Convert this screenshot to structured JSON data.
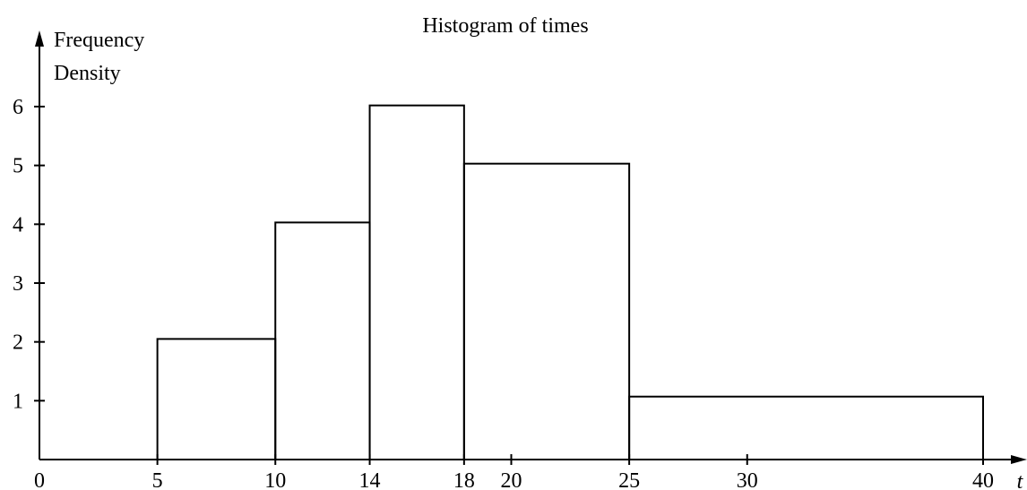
{
  "chart_data": {
    "type": "bar",
    "title": "Histogram of times",
    "ylabel_line1": "Frequency",
    "ylabel_line2": "Density",
    "xlabel": "t",
    "xlim": [
      0,
      40
    ],
    "ylim": [
      0,
      6
    ],
    "bins": [
      {
        "start": 5,
        "end": 10,
        "value": 2.05
      },
      {
        "start": 10,
        "end": 14,
        "value": 4.03
      },
      {
        "start": 14,
        "end": 18,
        "value": 6.02
      },
      {
        "start": 18,
        "end": 25,
        "value": 5.03
      },
      {
        "start": 25,
        "end": 40,
        "value": 1.07
      }
    ],
    "x_ticks": [
      "0",
      "5",
      "10",
      "14",
      "18",
      "20",
      "25",
      "30",
      "40"
    ],
    "y_ticks": [
      "1",
      "2",
      "3",
      "4",
      "5",
      "6"
    ],
    "grid": false,
    "legend": "none"
  }
}
